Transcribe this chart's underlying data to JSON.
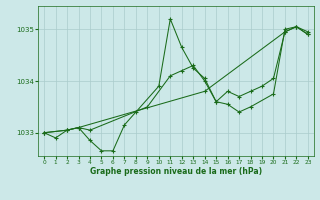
{
  "title": "Graphe pression niveau de la mer (hPa)",
  "background_color": "#cce8e8",
  "grid_color": "#aacccc",
  "line_color": "#1a6b1a",
  "xlim": [
    -0.5,
    23.5
  ],
  "ylim": [
    1032.55,
    1035.45
  ],
  "yticks": [
    1033,
    1034,
    1035
  ],
  "xticks": [
    0,
    1,
    2,
    3,
    4,
    5,
    6,
    7,
    8,
    9,
    10,
    11,
    12,
    13,
    14,
    15,
    16,
    17,
    18,
    19,
    20,
    21,
    22,
    23
  ],
  "series": [
    {
      "x": [
        0,
        1,
        2,
        3,
        4,
        5,
        6,
        7,
        8,
        10,
        11,
        12,
        13,
        14,
        15,
        16,
        17,
        18,
        20,
        21,
        22,
        23
      ],
      "y": [
        1033.0,
        1032.9,
        1033.05,
        1033.1,
        1032.85,
        1032.65,
        1032.65,
        1033.15,
        1033.4,
        1033.9,
        1035.2,
        1034.65,
        1034.25,
        1034.05,
        1033.6,
        1033.55,
        1033.4,
        1033.5,
        1033.75,
        1035.0,
        1035.05,
        1034.95
      ]
    },
    {
      "x": [
        0,
        2,
        3,
        14,
        21,
        22,
        23
      ],
      "y": [
        1033.0,
        1033.05,
        1033.1,
        1033.8,
        1034.95,
        1035.05,
        1034.9
      ]
    },
    {
      "x": [
        0,
        2,
        3,
        4,
        9,
        11,
        12,
        13,
        14,
        15,
        16,
        17,
        18,
        19,
        20,
        21,
        22,
        23
      ],
      "y": [
        1033.0,
        1033.05,
        1033.1,
        1033.05,
        1033.5,
        1034.1,
        1034.2,
        1034.3,
        1034.0,
        1033.6,
        1033.8,
        1033.7,
        1033.8,
        1033.9,
        1034.05,
        1034.95,
        1035.05,
        1034.9
      ]
    }
  ]
}
